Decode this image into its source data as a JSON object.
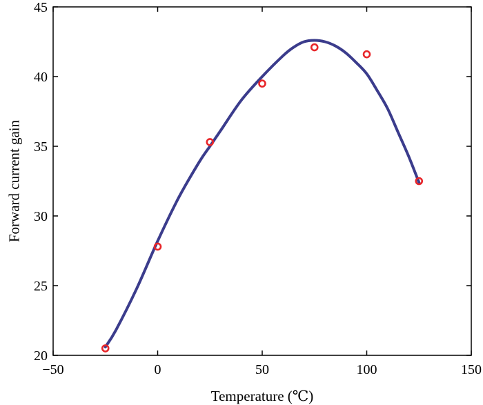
{
  "chart_data": {
    "type": "scatter",
    "title": "",
    "xlabel": "Temperature (℃)",
    "ylabel": "Forward current gain",
    "xlim": [
      -50,
      150
    ],
    "ylim": [
      20,
      45
    ],
    "xticks": [
      -50,
      0,
      50,
      100,
      150
    ],
    "yticks": [
      20,
      25,
      30,
      35,
      40,
      45
    ],
    "xtick_labels": [
      "−50",
      "0",
      "50",
      "100",
      "150"
    ],
    "ytick_labels": [
      "20",
      "25",
      "30",
      "35",
      "40",
      "45"
    ],
    "grid": false,
    "legend": "none",
    "series": [
      {
        "kind": "measured",
        "marker": "open-circle",
        "color": "#e8262a",
        "x": [
          -25,
          0,
          25,
          50,
          75,
          100,
          125
        ],
        "y": [
          20.5,
          27.8,
          35.3,
          39.5,
          42.1,
          41.6,
          32.5
        ]
      },
      {
        "kind": "fit",
        "line": "smooth",
        "color": "#3b3c8c",
        "x": [
          -25,
          -20,
          -10,
          0,
          10,
          20,
          25,
          30,
          40,
          50,
          60,
          65,
          70,
          75,
          80,
          85,
          90,
          95,
          100,
          105,
          110,
          115,
          120,
          125
        ],
        "y": [
          20.6,
          21.8,
          24.8,
          28.2,
          31.3,
          33.9,
          35.0,
          36.1,
          38.3,
          40.0,
          41.5,
          42.1,
          42.5,
          42.6,
          42.5,
          42.2,
          41.7,
          41.0,
          40.2,
          39.0,
          37.7,
          36.0,
          34.3,
          32.4
        ]
      }
    ]
  }
}
